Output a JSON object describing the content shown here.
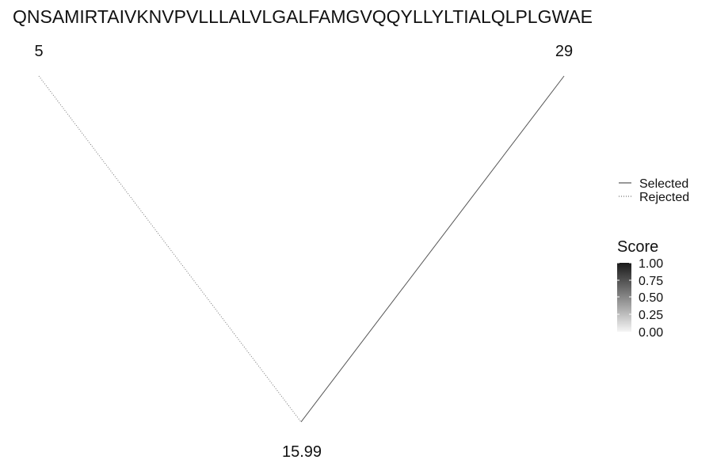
{
  "sequence": "QNSAMIRTAIVKNVPVLLLALVLGALFAMGVQQYLLYLTIALQLPLGWAE",
  "nodes": {
    "left": "5",
    "right": "29",
    "bottom": "15.99"
  },
  "edges": [
    {
      "from": "left",
      "to": "bottom",
      "status": "Rejected"
    },
    {
      "from": "right",
      "to": "bottom",
      "status": "Selected"
    }
  ],
  "legend": {
    "items": [
      {
        "label": "Selected",
        "line_style": "solid"
      },
      {
        "label": "Rejected",
        "line_style": "dotted"
      }
    ]
  },
  "colorbar": {
    "title": "Score",
    "ticks": [
      "1.00",
      "0.75",
      "0.50",
      "0.25",
      "0.00"
    ],
    "gradient_colors": [
      "#1a1a1a",
      "#f5f5f5"
    ]
  },
  "colors": {
    "selected_edge": "#555555",
    "rejected_edge": "#777777"
  }
}
